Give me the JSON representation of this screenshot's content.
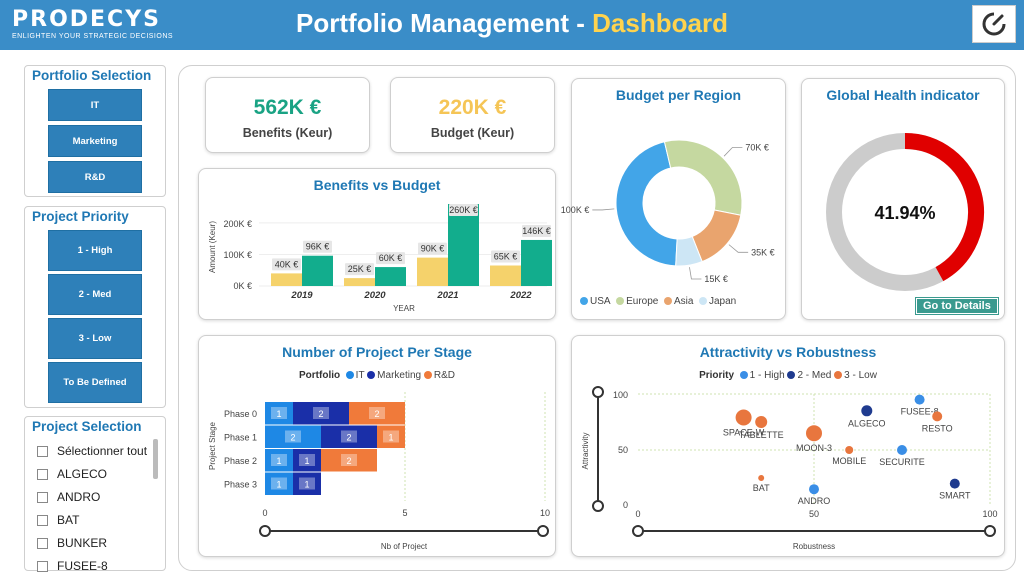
{
  "header": {
    "logo_text": "PRODECYS",
    "logo_tagline": "ENLIGHTEN YOUR STRATEGIC DECISIONS",
    "title_main": "Portfolio Management - ",
    "title_accent": "Dashboard",
    "bar_color": "#3a8dc8",
    "accent_color": "#ffd34e"
  },
  "portfolio_selection": {
    "title": "Portfolio Selection",
    "items": [
      "IT",
      "Marketing",
      "R&D"
    ]
  },
  "project_priority": {
    "title": "Project Priority",
    "items": [
      "1 - High",
      "2 - Med",
      "3 - Low",
      "To Be Defined"
    ]
  },
  "project_selection": {
    "title": "Project Selection",
    "items": [
      "Sélectionner tout",
      "ALGECO",
      "ANDRO",
      "BAT",
      "BUNKER",
      "FUSEE-8"
    ]
  },
  "kpis": {
    "benefits": {
      "value": "562K €",
      "label": "Benefits (Keur)",
      "color": "#1aa384"
    },
    "budget": {
      "value": "220K €",
      "label": "Budget (Keur)",
      "color": "#f5c556"
    }
  },
  "benefits_vs_budget": {
    "title": "Benefits vs Budget",
    "ylabel": "Amount (Keur)",
    "xlabel": "YEAR",
    "y_ticks": [
      "200K €",
      "100K €",
      "0K €"
    ],
    "chart_data": {
      "type": "bar",
      "categories": [
        "2019",
        "2020",
        "2021",
        "2022"
      ],
      "series": [
        {
          "name": "Budget",
          "values": [
            40,
            25,
            90,
            65
          ],
          "labels": [
            "40K €",
            "25K €",
            "90K €",
            "65K €"
          ],
          "color": "#f5d26b"
        },
        {
          "name": "Benefits",
          "values": [
            96,
            60,
            260,
            146
          ],
          "labels": [
            "96K €",
            "60K €",
            "260K €",
            "146K €"
          ],
          "color": "#12ad8d"
        }
      ],
      "ylim": [
        0,
        260
      ]
    }
  },
  "budget_per_region": {
    "title": "Budget per Region",
    "chart_data": {
      "type": "pie",
      "labels": [
        "USA",
        "Europe",
        "Asia",
        "Japan"
      ],
      "values": [
        100,
        70,
        35,
        15
      ],
      "value_labels": [
        "100K €",
        "70K €",
        "35K €",
        "15K €"
      ],
      "colors": [
        "#42a5e8",
        "#c5d8a0",
        "#e9a46e",
        "#cde6f5"
      ]
    }
  },
  "global_health": {
    "title": "Global Health indicator",
    "value_text": "41.94%",
    "value": 41.94,
    "button_label": "Go to Details",
    "fill_color": "#e00000",
    "track_color": "#cccccc"
  },
  "project_per_stage": {
    "title": "Number of Project Per Stage",
    "legend_title": "Portfolio",
    "xlabel": "Nb of Project",
    "ylabel": "Project Stage",
    "x_ticks": [
      "0",
      "5",
      "10"
    ],
    "chart_data": {
      "type": "bar",
      "orientation": "horizontal",
      "stacked": true,
      "categories": [
        "Phase 0",
        "Phase 1",
        "Phase 2",
        "Phase 3"
      ],
      "series": [
        {
          "name": "IT",
          "values": [
            1,
            2,
            1,
            1
          ],
          "color": "#1e88e5"
        },
        {
          "name": "Marketing",
          "values": [
            2,
            2,
            1,
            1
          ],
          "color": "#1a2fa8"
        },
        {
          "name": "R&D",
          "values": [
            2,
            1,
            2,
            0
          ],
          "color": "#f07a3a"
        }
      ],
      "xlim": [
        0,
        10
      ]
    }
  },
  "attractivity_vs_robustness": {
    "title": "Attractivity vs Robustness",
    "legend_title": "Priority",
    "xlabel": "Robustness",
    "ylabel": "Attractivity",
    "x_ticks": [
      "0",
      "50",
      "100"
    ],
    "y_ticks": [
      "100",
      "50",
      "0"
    ],
    "chart_data": {
      "type": "scatter",
      "series": [
        {
          "name": "1 - High",
          "color": "#3a8ee6"
        },
        {
          "name": "2 - Med",
          "color": "#1f3b8f"
        },
        {
          "name": "3 - Low",
          "color": "#e8763e"
        }
      ],
      "points": [
        {
          "label": "TABLETTE",
          "x": 35,
          "y": 75,
          "priority": "3 - Low",
          "size": 6
        },
        {
          "label": "SPACE-W",
          "x": 30,
          "y": 79,
          "priority": "3 - Low",
          "size": 8
        },
        {
          "label": "MOON-3",
          "x": 50,
          "y": 65,
          "priority": "3 - Low",
          "size": 8
        },
        {
          "label": "ALGECO",
          "x": 65,
          "y": 85,
          "priority": "2 - Med",
          "size": 5.5
        },
        {
          "label": "FUSEE-8",
          "x": 80,
          "y": 95,
          "priority": "1 - High",
          "size": 5
        },
        {
          "label": "RESTO",
          "x": 85,
          "y": 80,
          "priority": "3 - Low",
          "size": 5
        },
        {
          "label": "MOBILE",
          "x": 60,
          "y": 50,
          "priority": "3 - Low",
          "size": 4
        },
        {
          "label": "SECURITE",
          "x": 75,
          "y": 50,
          "priority": "1 - High",
          "size": 5
        },
        {
          "label": "ANDRO",
          "x": 50,
          "y": 15,
          "priority": "1 - High",
          "size": 5
        },
        {
          "label": "BAT",
          "x": 35,
          "y": 25,
          "priority": "3 - Low",
          "size": 3
        },
        {
          "label": "SMART",
          "x": 90,
          "y": 20,
          "priority": "2 - Med",
          "size": 5
        }
      ],
      "xlim": [
        0,
        100
      ],
      "ylim": [
        0,
        100
      ]
    }
  }
}
